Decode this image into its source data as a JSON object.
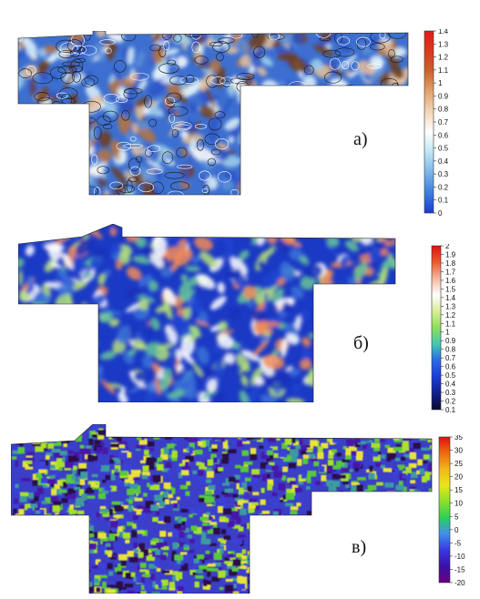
{
  "panels": [
    {
      "label": "а)",
      "colorbar": {
        "ticks": [
          "0",
          "0.1",
          "0.2",
          "0.3",
          "0.4",
          "0.5",
          "0.6",
          "0.7",
          "0.8",
          "0.9",
          "1",
          "1.1",
          "1.2",
          "1.3",
          "1.4"
        ],
        "colors": [
          "#1a3ad8",
          "#3f7ed9",
          "#79b5e8",
          "#bfe5f5",
          "#ffffff",
          "#f3d6b8",
          "#e3a36e",
          "#c8662e",
          "#d93a1e",
          "#e01a1a"
        ]
      },
      "palette": [
        "#2a55c8",
        "#5c90d8",
        "#9fd0ee",
        "#dff2fa",
        "#ffffff",
        "#e8c29a",
        "#b8743c",
        "#6e3d18"
      ],
      "background": "#3d6fd0"
    },
    {
      "label": "б)",
      "colorbar": {
        "ticks": [
          "0.1",
          "0.2",
          "0.3",
          "0.4",
          "0.5",
          "0.6",
          "0.7",
          "0.8",
          "0.9",
          "1",
          "1.1",
          "1.2",
          "1.3",
          "1.4",
          "1.5",
          "1.6",
          "1.7",
          "1.8",
          "1.9",
          "2"
        ],
        "colors": [
          "#0a0a30",
          "#10208a",
          "#1a3bd6",
          "#2a6ae6",
          "#46c7b0",
          "#8ede5a",
          "#d8ee96",
          "#ffffff",
          "#f4b8a0",
          "#ea5a2c",
          "#e01010"
        ]
      },
      "palette": [
        "#1430b8",
        "#1e46d2",
        "#3a72d8",
        "#66c49a",
        "#b6e078",
        "#ffffff",
        "#f08a5a"
      ],
      "background": "#1a39c4"
    },
    {
      "label": "в)",
      "colorbar": {
        "ticks": [
          "-20",
          "-15",
          "-10",
          "-5",
          "0",
          "5",
          "10",
          "15",
          "20",
          "25",
          "30",
          "35"
        ],
        "colors": [
          "#6a007a",
          "#3a10a8",
          "#3a36e0",
          "#3f8ef0",
          "#2cd05a",
          "#8ae02a",
          "#e8e81a",
          "#f0b818",
          "#ee6a10",
          "#e21010"
        ]
      },
      "palette": [
        "#2a0a4a",
        "#4a18a8",
        "#3a40d8",
        "#3e9aa0",
        "#58c83a",
        "#a8e02a",
        "#e8e23a"
      ],
      "background": "#3b3ec8"
    }
  ]
}
